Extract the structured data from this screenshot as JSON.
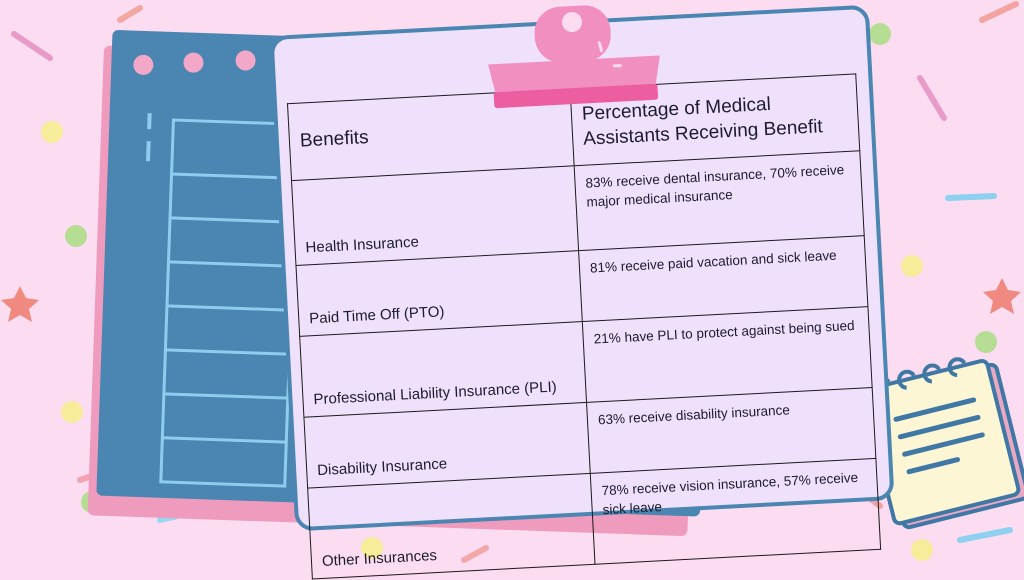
{
  "table": {
    "headers": [
      "Benefits",
      "Percentage of Medical Assistants Receiving Benefit"
    ],
    "rows": [
      [
        "Health Insurance",
        "83% receive dental insurance, 70% receive major medical insurance"
      ],
      [
        "Paid Time Off (PTO)",
        "81% receive paid vacation and sick leave"
      ],
      [
        "Professional Liability Insurance (PLI)",
        "21% have PLI to protect against being sued"
      ],
      [
        "Disability Insurance",
        "63% receive disability insurance"
      ],
      [
        "Other Insurances",
        "78% receive vision insurance, 57% receive sick leave"
      ]
    ]
  },
  "colors": {
    "background": "#fbdcf0",
    "board": "#4a86b1",
    "card": "#efe0fb",
    "clip": "#f08fc0",
    "notepad": "#fdf6d4"
  },
  "icons": [
    "clipboard-clip-icon",
    "notepad-icon",
    "spiral-binding-icon",
    "star-confetti-icon"
  ]
}
